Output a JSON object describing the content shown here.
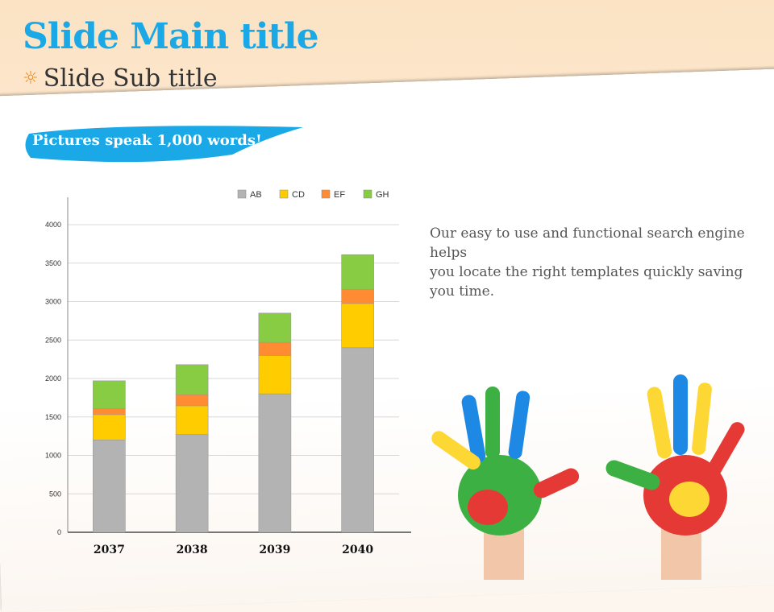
{
  "header": {
    "title": "Slide Main title",
    "subtitle": "Slide Sub title",
    "subtitle_icon": "sun-icon"
  },
  "banner": {
    "text": "Pictures speak 1,000 words!",
    "color": "#1aa9e6"
  },
  "body": {
    "lines": [
      "Our easy to use and functional search engine helps",
      "you locate the right templates  quickly saving you time."
    ]
  },
  "chart_data": {
    "type": "bar",
    "stacked": true,
    "categories": [
      "2037",
      "2038",
      "2039",
      "2040"
    ],
    "series": [
      {
        "name": "AB",
        "color": "#b3b3b3",
        "values": [
          1200,
          1270,
          1800,
          2400
        ]
      },
      {
        "name": "CD",
        "color": "#ffcc00",
        "values": [
          330,
          375,
          500,
          575
        ]
      },
      {
        "name": "EF",
        "color": "#ff8c33",
        "values": [
          80,
          145,
          170,
          185
        ]
      },
      {
        "name": "GH",
        "color": "#88cc44",
        "values": [
          360,
          390,
          380,
          450
        ]
      }
    ],
    "ylim": [
      0,
      4000
    ],
    "yticks": [
      "0",
      "500",
      "1000",
      "1500",
      "2000",
      "2500",
      "3000",
      "3500",
      "4000"
    ],
    "grid": true,
    "legend": "top-right",
    "title": "",
    "xlabel": "",
    "ylabel": ""
  }
}
